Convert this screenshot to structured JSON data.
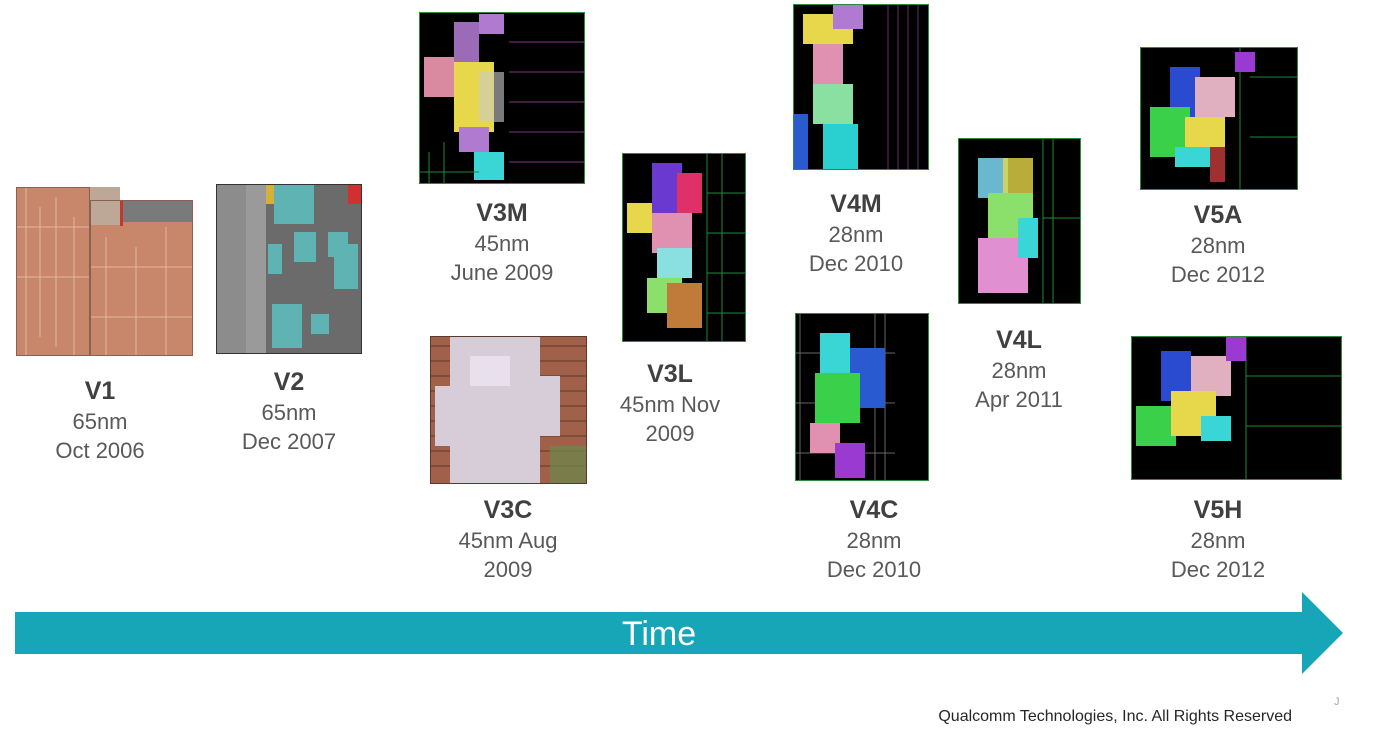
{
  "generations": [
    {
      "name": "V1",
      "lines": [
        "65nm",
        "Oct 2006"
      ]
    },
    {
      "name": "V2",
      "lines": [
        "65nm",
        "Dec 2007"
      ]
    },
    {
      "name": "V3M",
      "lines": [
        "45nm",
        "June 2009"
      ]
    },
    {
      "name": "V3C",
      "lines": [
        "45nm Aug",
        "2009"
      ]
    },
    {
      "name": "V3L",
      "lines": [
        "45nm Nov",
        "2009"
      ]
    },
    {
      "name": "V4M",
      "lines": [
        "28nm",
        "Dec 2010"
      ]
    },
    {
      "name": "V4C",
      "lines": [
        "28nm",
        "Dec 2010"
      ]
    },
    {
      "name": "V4L",
      "lines": [
        "28nm",
        "Apr 2011"
      ]
    },
    {
      "name": "V5A",
      "lines": [
        "28nm",
        "Dec 2012"
      ]
    },
    {
      "name": "V5H",
      "lines": [
        "28nm",
        "Dec 2012"
      ]
    }
  ],
  "time_label": "Time",
  "footer": "Qualcomm Technologies, Inc. All Rights Reserved",
  "page_mark": "J",
  "colors": {
    "arrow": "#17A6B8",
    "caption": "#595959",
    "die_border": "#2E8B3A"
  }
}
